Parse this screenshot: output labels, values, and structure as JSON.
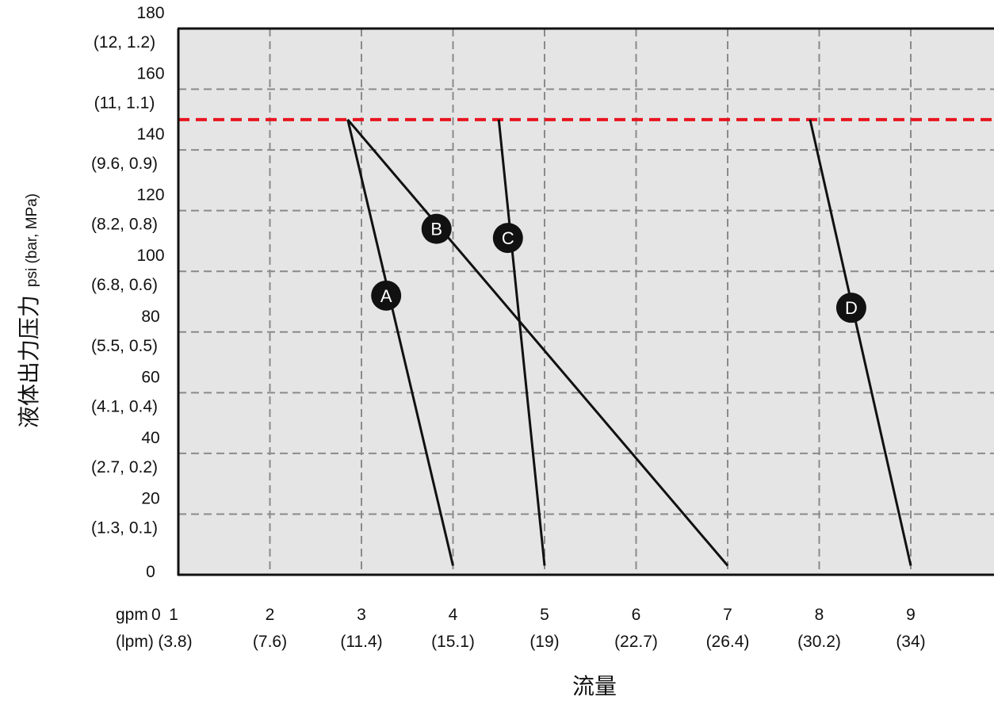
{
  "chart_data": {
    "type": "line",
    "x_unit_primary": "gpm",
    "x_unit_secondary": "(lpm)",
    "x_ticks": [
      {
        "value": 1,
        "label": "1",
        "sub": "(3.8)"
      },
      {
        "value": 2,
        "label": "2",
        "sub": "(7.6)"
      },
      {
        "value": 3,
        "label": "3",
        "sub": "(11.4)"
      },
      {
        "value": 4,
        "label": "4",
        "sub": "(15.1)"
      },
      {
        "value": 5,
        "label": "5",
        "sub": "(19)"
      },
      {
        "value": 6,
        "label": "6",
        "sub": "(22.7)"
      },
      {
        "value": 7,
        "label": "7",
        "sub": "(26.4)"
      },
      {
        "value": 8,
        "label": "8",
        "sub": "(30.2)"
      },
      {
        "value": 9,
        "label": "9",
        "sub": "(34)"
      }
    ],
    "x_origin_label": "0",
    "xlim": [
      0,
      10
    ],
    "y_ticks": [
      {
        "value": 0,
        "label": "0",
        "sub": ""
      },
      {
        "value": 20,
        "label": "20",
        "sub": "(1.3, 0.1)"
      },
      {
        "value": 40,
        "label": "40",
        "sub": "(2.7, 0.2)"
      },
      {
        "value": 60,
        "label": "60",
        "sub": "(4.1, 0.4)"
      },
      {
        "value": 80,
        "label": "80",
        "sub": "(5.5, 0.5)"
      },
      {
        "value": 100,
        "label": "100",
        "sub": "(6.8, 0.6)"
      },
      {
        "value": 120,
        "label": "120",
        "sub": "(8.2, 0.8)"
      },
      {
        "value": 140,
        "label": "140",
        "sub": "(9.6, 0.9)"
      },
      {
        "value": 160,
        "label": "160",
        "sub": "(11, 1.1)"
      },
      {
        "value": 180,
        "label": "180",
        "sub": "(12, 1.2)"
      }
    ],
    "ylim": [
      0,
      180
    ],
    "xlabel": "流量",
    "ylabel_main": "液体出力压力",
    "ylabel_unit": "psi (bar, MPa)",
    "grid": true,
    "reference_line": {
      "y": 150,
      "color": "#e8141e",
      "style": "dashed"
    },
    "series": [
      {
        "name": "A",
        "points": [
          [
            2.85,
            150
          ],
          [
            4.0,
            3
          ]
        ],
        "marker_at": [
          3.27,
          92
        ]
      },
      {
        "name": "B",
        "points": [
          [
            2.85,
            150
          ],
          [
            7.0,
            3
          ]
        ],
        "marker_at": [
          3.82,
          114
        ]
      },
      {
        "name": "C",
        "points": [
          [
            4.5,
            150
          ],
          [
            5.0,
            3
          ]
        ],
        "marker_at": [
          4.6,
          111
        ]
      },
      {
        "name": "D",
        "points": [
          [
            7.9,
            150
          ],
          [
            9.0,
            3
          ]
        ],
        "marker_at": [
          8.35,
          88
        ]
      }
    ],
    "colors": {
      "plot_bg": "#e5e5e5",
      "grid": "#8a8a8a",
      "line": "#111111",
      "marker": "#111111"
    }
  }
}
